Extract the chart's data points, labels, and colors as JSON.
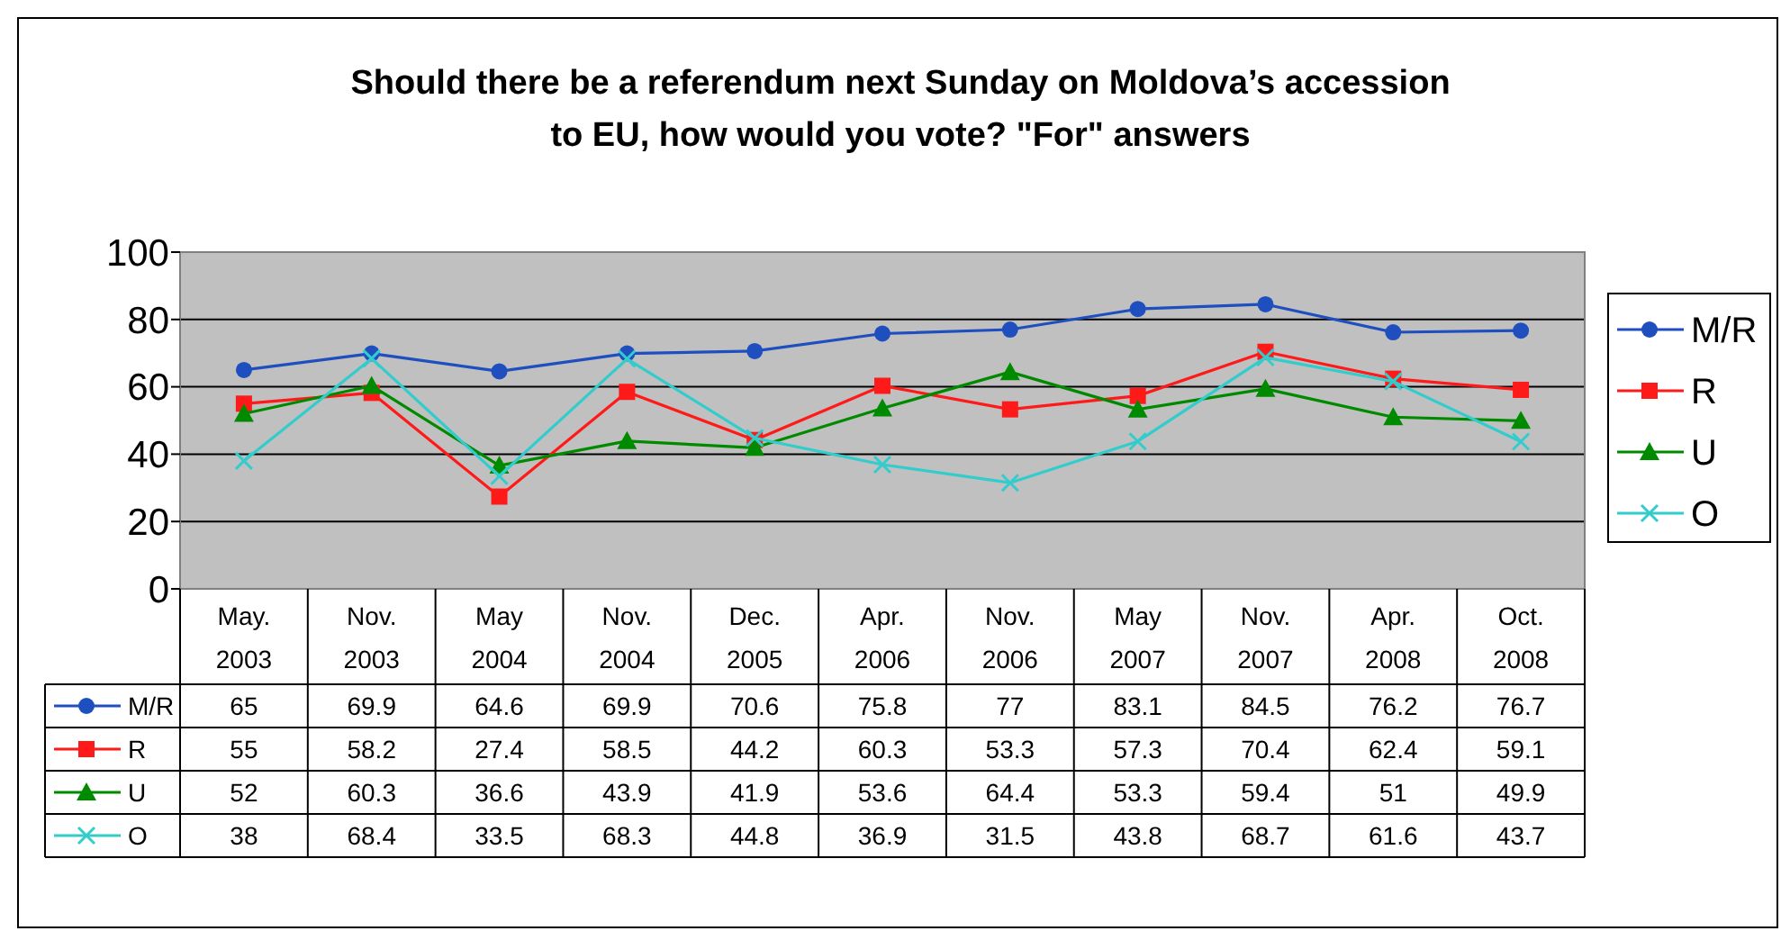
{
  "chart_data": {
    "type": "line",
    "title": "Should there be a referendum next Sunday on Moldova’s accession to EU, how would you vote? \"For\" answers",
    "categories": [
      "May. 2003",
      "Nov. 2003",
      "May 2004",
      "Nov. 2004",
      "Dec. 2005",
      "Apr. 2006",
      "Nov. 2006",
      "May 2007",
      "Nov. 2007",
      "Apr. 2008",
      "Oct. 2008"
    ],
    "series": [
      {
        "name": "M/R",
        "color": "#1f4fbf",
        "marker": "circle",
        "values": [
          65,
          69.9,
          64.6,
          69.9,
          70.6,
          75.8,
          77,
          83.1,
          84.5,
          76.2,
          76.7
        ]
      },
      {
        "name": "R",
        "color": "#ff1a1a",
        "marker": "square",
        "values": [
          55,
          58.2,
          27.4,
          58.5,
          44.2,
          60.3,
          53.3,
          57.3,
          70.4,
          62.4,
          59.1
        ]
      },
      {
        "name": "U",
        "color": "#008a00",
        "marker": "triangle",
        "values": [
          52,
          60.3,
          36.6,
          43.9,
          41.9,
          53.6,
          64.4,
          53.3,
          59.4,
          51,
          49.9
        ]
      },
      {
        "name": "O",
        "color": "#33cccc",
        "marker": "cross",
        "values": [
          38,
          68.4,
          33.5,
          68.3,
          44.8,
          36.9,
          31.5,
          43.8,
          68.7,
          61.6,
          43.7
        ]
      }
    ],
    "ylim": [
      0,
      100
    ],
    "yticks": [
      0,
      20,
      40,
      60,
      80,
      100
    ],
    "grid": "y",
    "legend": "right",
    "data_labels": true
  }
}
